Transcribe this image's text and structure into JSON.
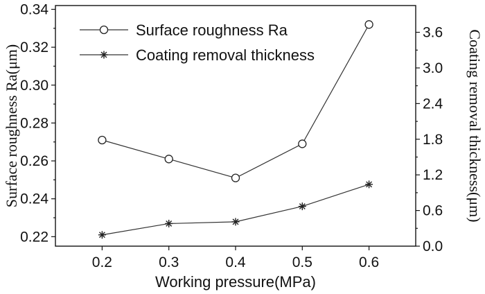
{
  "chart_data": {
    "type": "line",
    "x": [
      0.2,
      0.3,
      0.4,
      0.5,
      0.6
    ],
    "xlabel": "Working pressure(MPa)",
    "xlim": [
      0.13,
      0.67
    ],
    "xticks": [
      "0.2",
      "0.3",
      "0.4",
      "0.5",
      "0.6"
    ],
    "ylabel": "Surface roughness Ra(μm)",
    "ylim": [
      0.215,
      0.342
    ],
    "yticks": [
      "0.22",
      "0.24",
      "0.26",
      "0.28",
      "0.30",
      "0.32",
      "0.34"
    ],
    "y2label": "Coating removal thickness(μm)",
    "y2lim": [
      0.0,
      4.05
    ],
    "y2ticks": [
      "0.0",
      "0.6",
      "1.2",
      "1.8",
      "2.4",
      "3.0",
      "3.6"
    ],
    "grid": false,
    "legend_position": "top-left",
    "series": [
      {
        "name": "Surface roughness Ra",
        "axis": "left",
        "marker": "circle",
        "values": [
          0.271,
          0.261,
          0.251,
          0.269,
          0.332
        ]
      },
      {
        "name": "Coating removal thickness",
        "axis": "right",
        "marker": "star",
        "values": [
          0.19,
          0.38,
          0.41,
          0.67,
          1.04
        ]
      }
    ]
  }
}
